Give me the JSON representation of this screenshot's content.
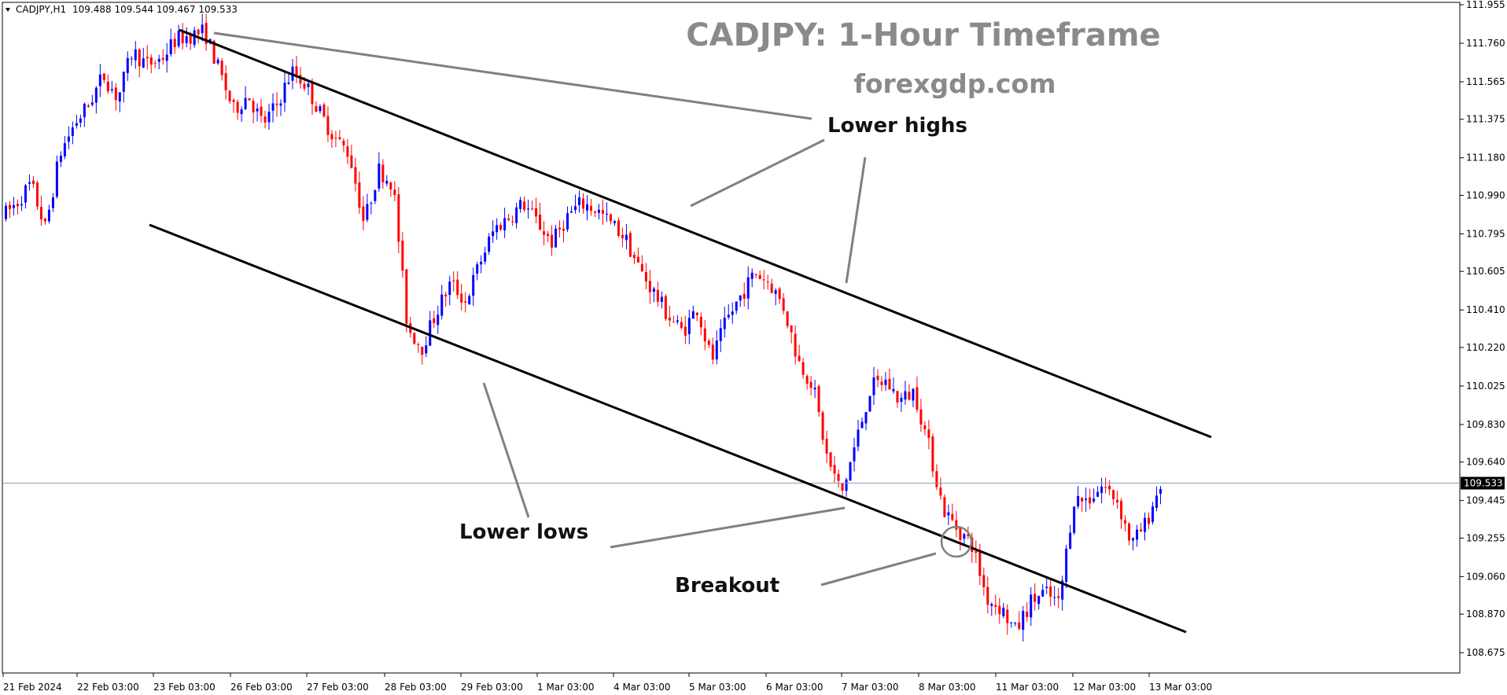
{
  "chart_data": {
    "type": "candlestick",
    "symbol_header": "CADJPY,H1",
    "ohlc_header": "109.488 109.544 109.467 109.533",
    "title": "CADJPY: 1-Hour Timeframe",
    "subtitle": "forexgdp.com",
    "current_price": 109.533,
    "current_price_label": "109.533",
    "colors": {
      "up": "#0000ff",
      "down": "#ff0000",
      "current_line": "#8aa0b4",
      "trendline": "#000000",
      "pointer": "#808080"
    },
    "ylim": [
      108.58,
      111.955
    ],
    "y_ticks": [
      "111.955",
      "111.760",
      "111.565",
      "111.375",
      "111.180",
      "110.990",
      "110.795",
      "110.605",
      "110.410",
      "110.220",
      "110.025",
      "109.830",
      "109.640",
      "109.445",
      "109.255",
      "109.060",
      "108.870",
      "108.675"
    ],
    "x_ticks": [
      "21 Feb 2024",
      "22 Feb 03:00",
      "23 Feb 03:00",
      "26 Feb 03:00",
      "27 Feb 03:00",
      "28 Feb 03:00",
      "29 Feb 03:00",
      "1 Mar 03:00",
      "4 Mar 03:00",
      "5 Mar 03:00",
      "6 Mar 03:00",
      "7 Mar 03:00",
      "8 Mar 03:00",
      "11 Mar 03:00",
      "12 Mar 03:00",
      "13 Mar 03:00"
    ],
    "price_path": [
      110.88,
      110.95,
      111.05,
      110.82,
      111.2,
      111.35,
      111.45,
      111.6,
      111.48,
      111.72,
      111.65,
      111.68,
      111.78,
      111.8,
      111.82,
      111.62,
      111.42,
      111.5,
      111.35,
      111.45,
      111.62,
      111.55,
      111.4,
      111.28,
      111.2,
      110.85,
      111.12,
      111.05,
      110.32,
      110.22,
      110.4,
      110.55,
      110.45,
      110.65,
      110.82,
      110.88,
      110.95,
      110.85,
      110.75,
      110.88,
      110.95,
      110.92,
      110.85,
      110.78,
      110.62,
      110.5,
      110.38,
      110.3,
      110.42,
      110.15,
      110.35,
      110.48,
      110.6,
      110.55,
      110.42,
      110.15,
      110.03,
      109.65,
      109.48,
      109.75,
      110.02,
      110.05,
      109.95,
      110.0,
      109.72,
      109.4,
      109.3,
      109.22,
      108.95,
      108.9,
      108.78,
      108.93,
      108.98,
      108.92,
      109.45,
      109.45,
      109.52,
      109.45,
      109.22,
      109.33,
      109.53
    ],
    "annotations": [
      "Lower highs",
      "Lower lows",
      "Breakout"
    ]
  }
}
